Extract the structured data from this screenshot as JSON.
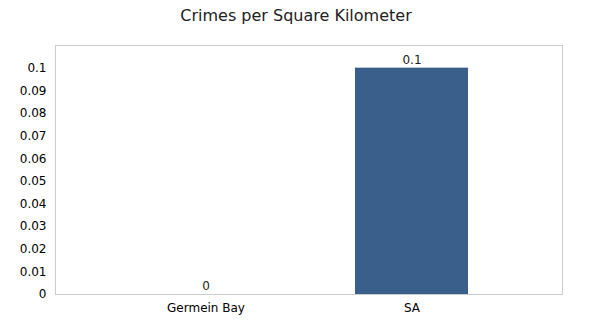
{
  "chart_data": {
    "type": "bar",
    "title": "Crimes per Square Kilometer",
    "categories": [
      "Germein Bay",
      "SA"
    ],
    "values": [
      0.0,
      0.1
    ],
    "color": "#3a5f8a",
    "ylim": [
      0,
      0.11
    ],
    "yticks": [
      0,
      0.01,
      0.02,
      0.03,
      0.04,
      0.05,
      0.06,
      0.07,
      0.08,
      0.09,
      0.1
    ],
    "grid": false,
    "data_labels": true
  }
}
